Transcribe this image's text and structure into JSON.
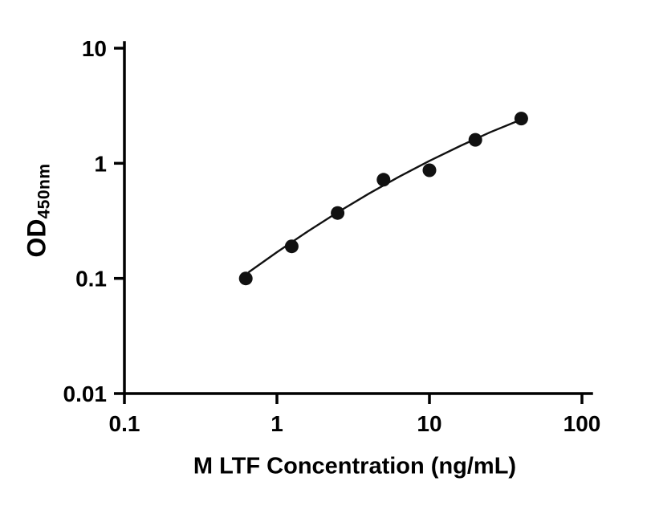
{
  "chart_data": {
    "type": "scatter",
    "title": "",
    "xlabel": "M LTF Concentration (ng/mL)",
    "ylabel": "OD",
    "ylabel_subscript": "450nm",
    "x_scale": "log",
    "y_scale": "log",
    "xlim": [
      0.1,
      100
    ],
    "ylim": [
      0.01,
      10
    ],
    "grid": false,
    "legend": "none",
    "x_ticks": [
      0.1,
      1,
      10,
      100
    ],
    "x_tick_labels": [
      "0.1",
      "1",
      "10",
      "100"
    ],
    "y_ticks": [
      0.01,
      0.1,
      1,
      10
    ],
    "y_tick_labels": [
      "0.01",
      "0.1",
      "1",
      "10"
    ],
    "points": [
      {
        "x": 0.625,
        "y": 0.1
      },
      {
        "x": 1.25,
        "y": 0.19
      },
      {
        "x": 2.5,
        "y": 0.37
      },
      {
        "x": 5,
        "y": 0.72
      },
      {
        "x": 10,
        "y": 0.87
      },
      {
        "x": 20,
        "y": 1.6
      },
      {
        "x": 40,
        "y": 2.45
      }
    ],
    "fit_curve": [
      [
        0.65,
        0.113
      ],
      [
        1.0,
        0.169
      ],
      [
        1.6,
        0.257
      ],
      [
        2.5,
        0.375
      ],
      [
        4.0,
        0.544
      ],
      [
        6.3,
        0.763
      ],
      [
        10,
        1.05
      ],
      [
        16,
        1.42
      ],
      [
        25,
        1.86
      ],
      [
        40.3,
        2.41
      ]
    ],
    "marker_color": "#111111",
    "line_color": "#111111",
    "axis_color": "#000000",
    "background_color": "#ffffff"
  }
}
